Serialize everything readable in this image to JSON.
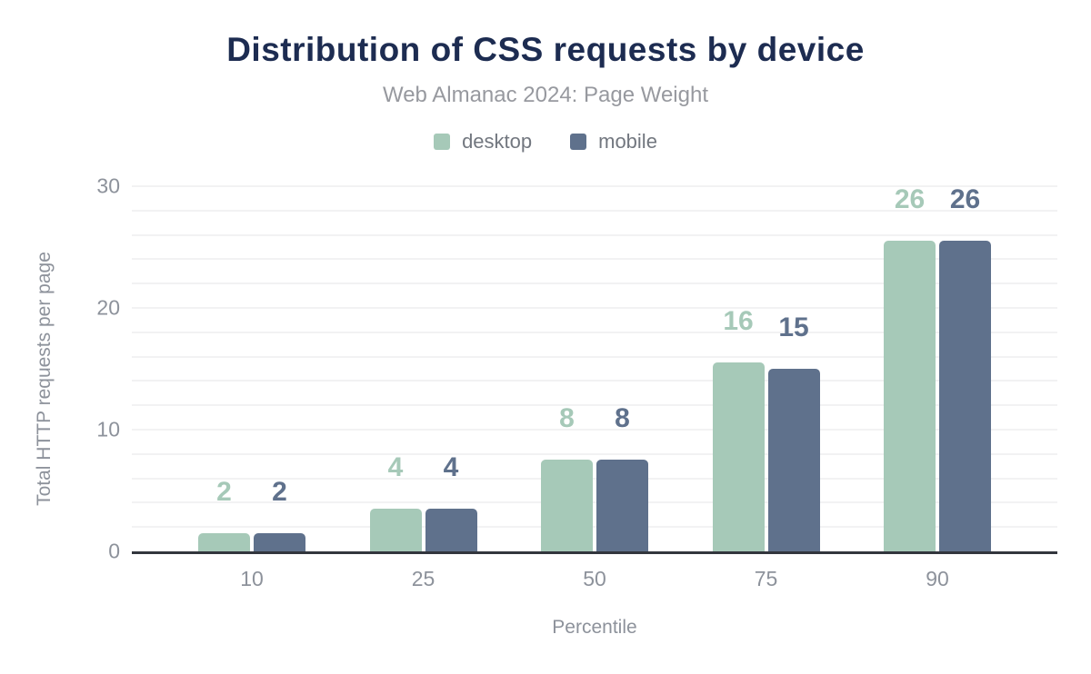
{
  "page": {
    "background": "#ffffff"
  },
  "header": {
    "title": "Distribution of CSS requests by device",
    "subtitle": "Web Almanac 2024: Page Weight"
  },
  "legend": {
    "items": [
      {
        "label": "desktop",
        "color": "#a6c9b8"
      },
      {
        "label": "mobile",
        "color": "#5f718c"
      }
    ]
  },
  "chart_data": {
    "type": "bar",
    "title": "Distribution of CSS requests by device",
    "subtitle": "Web Almanac 2024: Page Weight",
    "categories": [
      "10",
      "25",
      "50",
      "75",
      "90"
    ],
    "series": [
      {
        "name": "desktop",
        "color": "#a6c9b8",
        "values": [
          2,
          4,
          8,
          16,
          26
        ],
        "bar_values": [
          1.5,
          3.5,
          7.5,
          15.5,
          26
        ]
      },
      {
        "name": "mobile",
        "color": "#5f718c",
        "values": [
          2,
          4,
          8,
          15,
          26
        ],
        "bar_values": [
          1.5,
          3.5,
          7.5,
          15,
          26
        ]
      }
    ],
    "xlabel": "Percentile",
    "ylabel": "Total HTTP requests per page",
    "ylim": [
      0,
      30
    ],
    "yticks": [
      0,
      10,
      20,
      30
    ],
    "grid": {
      "horizontal": true,
      "minor_step": 2,
      "color": "#f2f2f3"
    },
    "legend_position": "top",
    "axis_line_color": "#32363d",
    "tick_color": "#8d929b"
  }
}
